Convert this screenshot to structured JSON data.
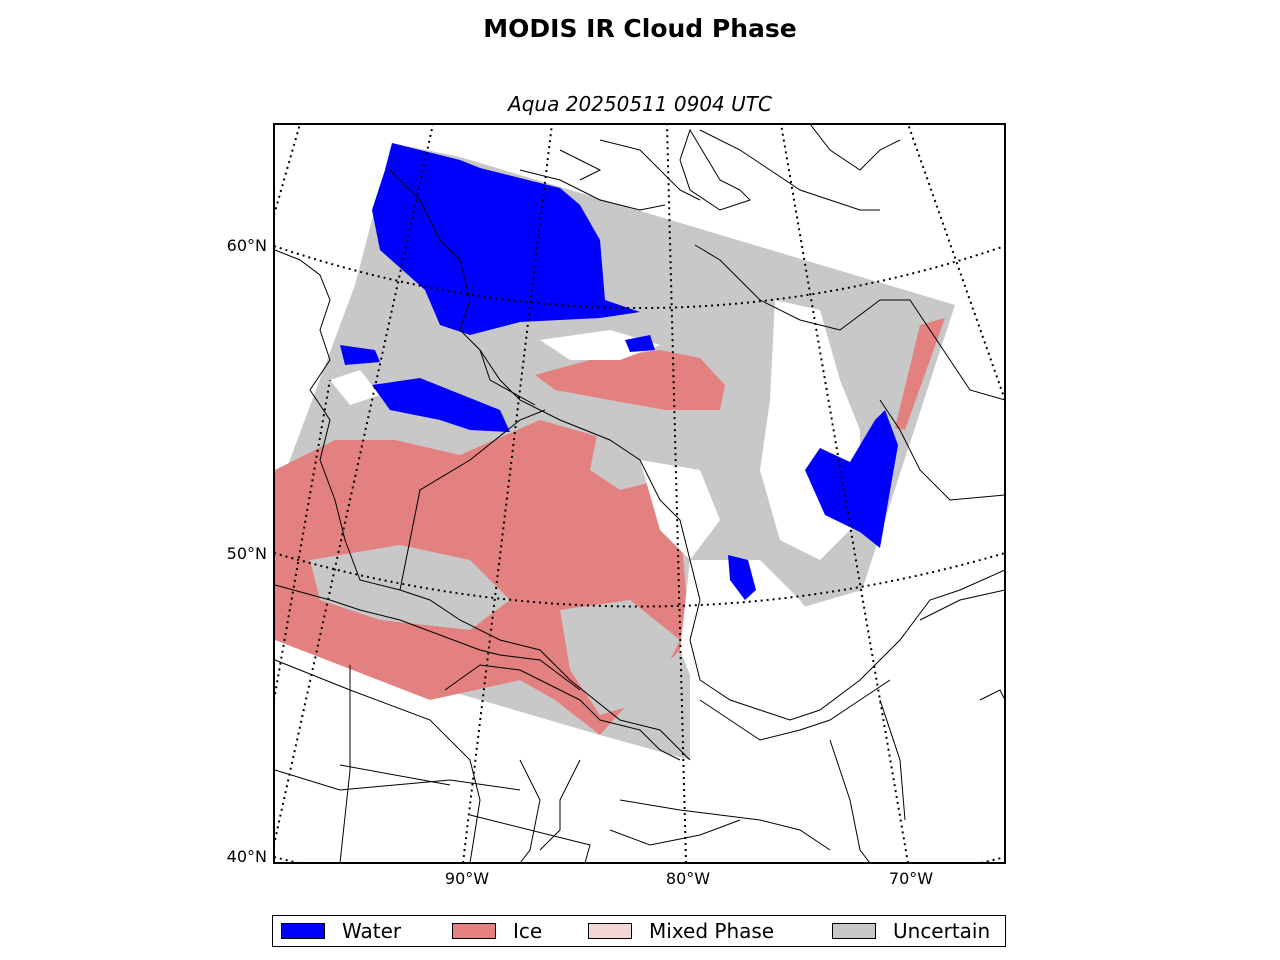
{
  "title": "MODIS IR Cloud Phase",
  "subtitle": "Aqua 20250511 0904 UTC",
  "axes": {
    "lat_labels": [
      "60°N",
      "50°N",
      "40°N"
    ],
    "lon_labels": [
      "90°W",
      "80°W",
      "70°W"
    ]
  },
  "legend": [
    {
      "label": "Water",
      "color": "#0000ff"
    },
    {
      "label": "Ice",
      "color": "#e38080"
    },
    {
      "label": "Mixed Phase",
      "color": "#f3d6d6"
    },
    {
      "label": "Uncertain",
      "color": "#c8c8c8"
    }
  ],
  "colors": {
    "water": "#0000ff",
    "ice": "#e38080",
    "mixed": "#f3d6d6",
    "uncertain": "#c8c8c8",
    "clear": "#ffffff",
    "coast": "#000000"
  }
}
